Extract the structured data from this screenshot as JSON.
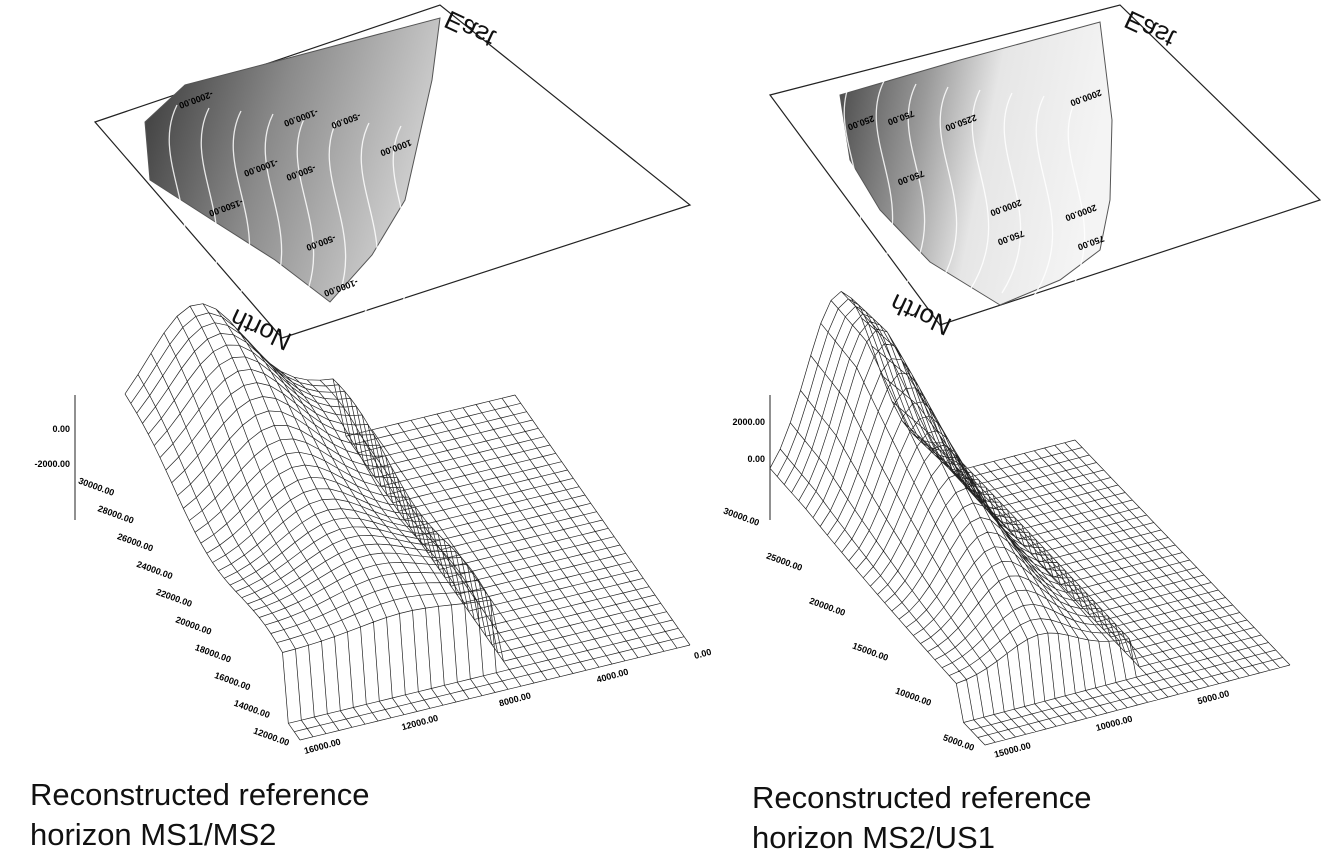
{
  "panels": [
    {
      "map": {
        "east": "East",
        "north": "North",
        "contour_labels": [
          "-2000.00",
          "-1000.00",
          "-500.00",
          "1000.00",
          "-1500.00",
          "-1000.00",
          "-500.00",
          "-500.00",
          "-1000.00"
        ]
      },
      "surface": {
        "z_ticks": [
          "0.00",
          "-2000.00"
        ],
        "y_ticks": [
          "30000.00",
          "28000.00",
          "26000.00",
          "24000.00",
          "22000.00",
          "20000.00",
          "18000.00",
          "16000.00",
          "14000.00",
          "12000.00"
        ],
        "x_ticks": [
          "16000.00",
          "12000.00",
          "8000.00",
          "4000.00",
          "0.00"
        ]
      },
      "caption": [
        "Reconstructed reference",
        "horizon MS1/MS2"
      ]
    },
    {
      "map": {
        "east": "East",
        "north": "North",
        "contour_labels": [
          "250.00",
          "750.00",
          "2250.00",
          "2000.00",
          "750.00",
          "2000.00",
          "2000.00",
          "750.00",
          "750.00"
        ]
      },
      "surface": {
        "z_ticks": [
          "2000.00",
          "0.00"
        ],
        "y_ticks": [
          "30000.00",
          "25000.00",
          "20000.00",
          "15000.00",
          "10000.00",
          "5000.00"
        ],
        "x_ticks": [
          "15000.00",
          "10000.00",
          "5000.00"
        ]
      },
      "caption": [
        "Reconstructed reference",
        "horizon MS2/US1"
      ]
    }
  ]
}
